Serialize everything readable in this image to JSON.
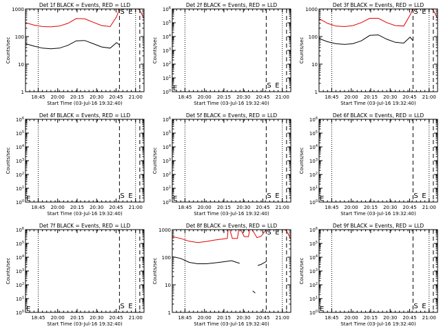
{
  "figure": {
    "start_time_label": "Start Time (03-Jul-16 19:32:40)",
    "ylabel": "Counts/sec",
    "marker_S": "S",
    "marker_E": "E",
    "colors": {
      "events": "#000000",
      "lld": "#e00000",
      "axes": "#000000",
      "background": "#ffffff"
    }
  },
  "chart_data": [
    {
      "type": "line",
      "title": "Det 1f BLACK = Events, RED = LLD",
      "yscale": "log",
      "ylim": [
        1,
        1000
      ],
      "ytick_labels": [
        "1",
        "10",
        "100",
        "1000"
      ],
      "xtick_labels": [
        "18:45",
        "20:00",
        "20:15",
        "20:30",
        "20:45",
        "21:00"
      ],
      "start_marker_label": "S",
      "end_marker_label": "E",
      "series": [
        {
          "name": "BLACK = Events",
          "color": "#000000",
          "x": [
            0,
            2,
            4,
            6,
            8,
            10,
            12,
            14,
            16,
            18,
            20,
            21.5,
            22.2
          ],
          "y": [
            55,
            45,
            38,
            36,
            38,
            48,
            70,
            72,
            55,
            42,
            38,
            60,
            50
          ]
        },
        {
          "name": "RED = LLD",
          "color": "#e00000",
          "x": [
            0,
            2,
            4,
            6,
            8,
            10,
            12,
            14,
            16,
            18,
            20,
            21.5,
            22.2,
            24,
            26.5,
            27,
            28
          ],
          "y": [
            320,
            260,
            230,
            225,
            240,
            300,
            450,
            440,
            330,
            250,
            230,
            520,
            1000,
            1000,
            1000,
            900,
            450
          ]
        }
      ]
    },
    {
      "type": "line",
      "title": "Det 2f BLACK = Events, RED = LLD",
      "yscale": "log",
      "ylim": [
        1,
        1000000
      ],
      "ytick_labels": [
        "10^0",
        "10^1",
        "10^2",
        "10^3",
        "10^4",
        "10^5",
        "10^6"
      ],
      "xtick_labels": [
        "18:45",
        "20:00",
        "20:15",
        "20:30",
        "20:45",
        "21:00"
      ],
      "start_marker_label": "S",
      "end_marker_label": "E",
      "series": []
    },
    {
      "type": "line",
      "title": "Det 3f BLACK = Events, RED = LLD",
      "yscale": "log",
      "ylim": [
        1,
        1000
      ],
      "ytick_labels": [
        "1",
        "10",
        "100",
        "1000"
      ],
      "xtick_labels": [
        "18:45",
        "20:00",
        "20:15",
        "20:30",
        "20:45",
        "21:00"
      ],
      "start_marker_label": "S",
      "end_marker_label": "E",
      "series": [
        {
          "name": "BLACK = Events",
          "color": "#000000",
          "x": [
            0,
            2,
            4,
            6,
            8,
            10,
            12,
            14,
            16,
            18,
            20,
            21.5,
            22.2
          ],
          "y": [
            85,
            65,
            55,
            52,
            55,
            70,
            110,
            115,
            80,
            62,
            58,
            95,
            70
          ]
        },
        {
          "name": "RED = LLD",
          "color": "#e00000",
          "x": [
            0,
            2,
            4,
            6,
            8,
            10,
            12,
            14,
            16,
            18,
            20,
            21.5,
            22.2,
            24,
            26.5,
            27,
            28
          ],
          "y": [
            450,
            300,
            240,
            230,
            250,
            320,
            460,
            460,
            320,
            250,
            240,
            600,
            1000,
            1000,
            1000,
            900,
            450
          ]
        }
      ]
    },
    {
      "type": "line",
      "title": "Det 4f BLACK = Events, RED = LLD",
      "yscale": "log",
      "ylim": [
        1,
        1000000
      ],
      "ytick_labels": [
        "10^0",
        "10^1",
        "10^2",
        "10^3",
        "10^4",
        "10^5",
        "10^6"
      ],
      "xtick_labels": [
        "18:45",
        "20:00",
        "20:15",
        "20:30",
        "20:45",
        "21:00"
      ],
      "start_marker_label": "S",
      "end_marker_label": "E",
      "series": []
    },
    {
      "type": "line",
      "title": "Det 5f BLACK = Events, RED = LLD",
      "yscale": "log",
      "ylim": [
        1,
        1000000
      ],
      "ytick_labels": [
        "10^0",
        "10^1",
        "10^2",
        "10^3",
        "10^4",
        "10^5",
        "10^6"
      ],
      "xtick_labels": [
        "18:45",
        "20:00",
        "20:15",
        "20:30",
        "20:45",
        "21:00"
      ],
      "start_marker_label": "S",
      "end_marker_label": "E",
      "series": []
    },
    {
      "type": "line",
      "title": "Det 6f BLACK = Events, RED = LLD",
      "yscale": "log",
      "ylim": [
        1,
        1000000
      ],
      "ytick_labels": [
        "10^0",
        "10^1",
        "10^2",
        "10^3",
        "10^4",
        "10^5",
        "10^6"
      ],
      "xtick_labels": [
        "18:45",
        "20:00",
        "20:15",
        "20:30",
        "20:45",
        "21:00"
      ],
      "start_marker_label": "S",
      "end_marker_label": "E",
      "series": []
    },
    {
      "type": "line",
      "title": "Det 7f BLACK = Events, RED = LLD",
      "yscale": "log",
      "ylim": [
        1,
        1000000
      ],
      "ytick_labels": [
        "10^0",
        "10^1",
        "10^2",
        "10^3",
        "10^4",
        "10^5",
        "10^6"
      ],
      "xtick_labels": [
        "18:45",
        "20:00",
        "20:15",
        "20:30",
        "20:45",
        "21:00"
      ],
      "start_marker_label": "S",
      "end_marker_label": "E",
      "series": []
    },
    {
      "type": "line",
      "title": "Det 8f BLACK = Events, RED = LLD",
      "yscale": "log",
      "ylim": [
        1,
        1000
      ],
      "ytick_labels": [
        "1",
        "10",
        "100",
        "1000"
      ],
      "xtick_labels": [
        "18:45",
        "20:00",
        "20:15",
        "20:30",
        "20:45",
        "21:00"
      ],
      "start_marker_label": "S",
      "end_marker_label": "E",
      "series": [
        {
          "name": "BLACK = Events",
          "color": "#000000",
          "x": [
            0,
            2,
            4,
            6,
            8,
            10,
            12,
            14,
            15.9,
            null,
            19,
            19.6,
            null,
            20.2,
            21,
            22.2
          ],
          "y": [
            105,
            90,
            65,
            58,
            58,
            62,
            68,
            75,
            60,
            null,
            6,
            5,
            null,
            50,
            55,
            70
          ]
        },
        {
          "name": "RED = LLD",
          "color": "#e00000",
          "x": [
            0,
            2,
            4,
            6,
            8,
            10,
            12,
            13,
            13.2,
            13.6,
            14.2,
            15.4,
            15.7,
            16.2,
            17,
            18,
            18.3,
            18.9,
            20,
            21,
            22.2,
            24,
            26.5,
            27,
            28
          ],
          "y": [
            560,
            480,
            380,
            340,
            370,
            420,
            460,
            480,
            1000,
            1000,
            480,
            480,
            1000,
            1000,
            560,
            560,
            1000,
            1000,
            510,
            580,
            1000,
            1000,
            1000,
            900,
            450
          ]
        }
      ]
    },
    {
      "type": "line",
      "title": "Det 9f BLACK = Events, RED = LLD",
      "yscale": "log",
      "ylim": [
        1,
        1000000
      ],
      "ytick_labels": [
        "10^0",
        "10^1",
        "10^2",
        "10^3",
        "10^4",
        "10^5",
        "10^6"
      ],
      "xtick_labels": [
        "18:45",
        "20:00",
        "20:15",
        "20:30",
        "20:45",
        "21:00"
      ],
      "start_marker_label": "S",
      "end_marker_label": "E",
      "series": []
    }
  ]
}
